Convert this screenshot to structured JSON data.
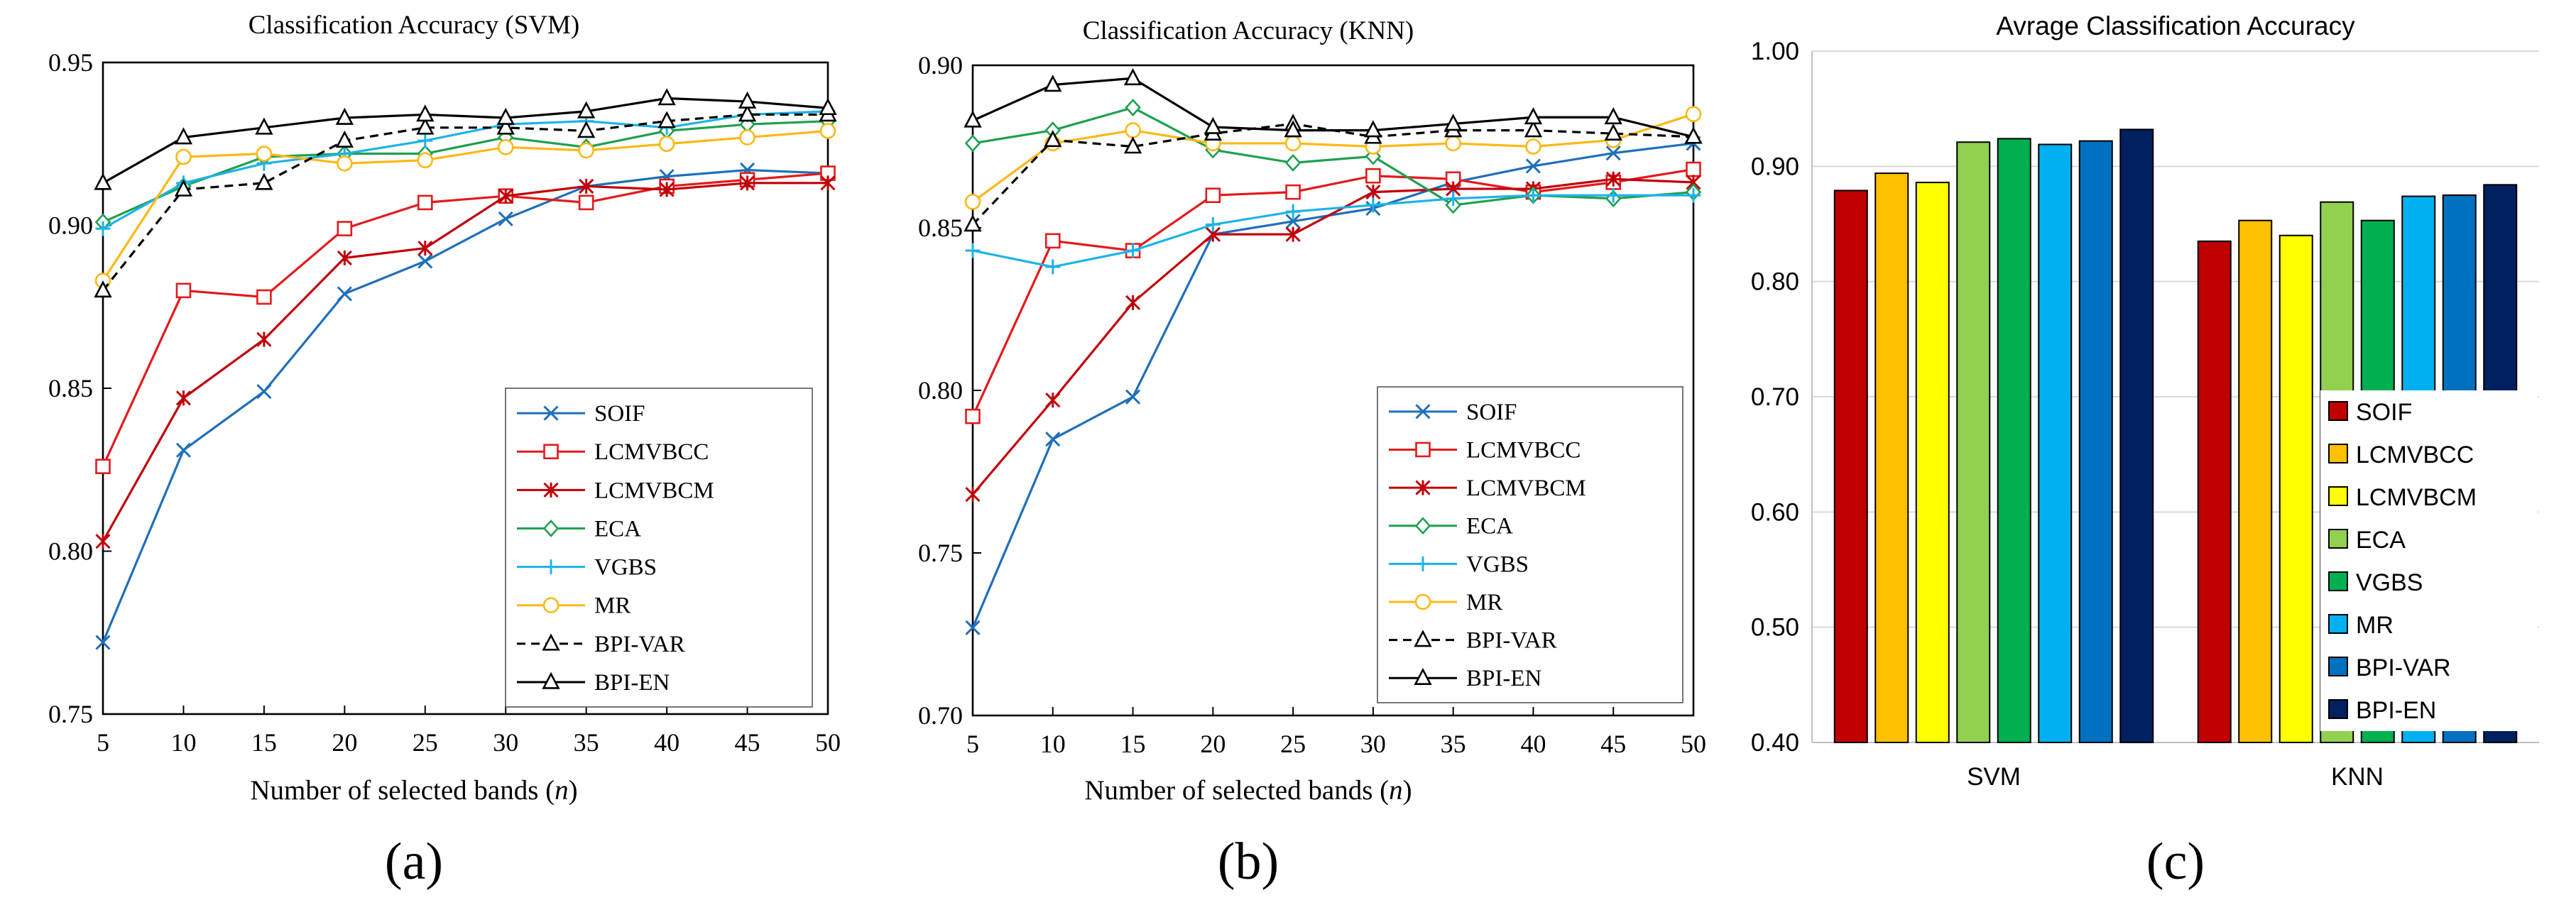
{
  "colors": {
    "SOIF_line": "#1F6FB9",
    "LCMVBCC_line": "#E31A1C",
    "LCMVBCM_line": "#C0000A",
    "ECA_line": "#1FA050",
    "VGBS_line": "#1DB3E8",
    "MR_line": "#FDB813",
    "BPI_line": "#000000",
    "bar_SOIF": "#C00000",
    "bar_LCMVBCC": "#FFC000",
    "bar_LCMVBCM": "#FFFF00",
    "bar_ECA": "#92D050",
    "bar_VGBS": "#00B050",
    "bar_MR": "#00B0F0",
    "bar_BPI_VAR": "#0070C0",
    "bar_BPI_EN": "#002060"
  },
  "chart_data": [
    {
      "type": "line",
      "panel_label": "(a)",
      "title": "Classification Accuracy (SVM)",
      "xlabel_prefix": "Number of selected bands (",
      "xlabel_var": "n",
      "xlabel_suffix": ")",
      "ylabel": "",
      "x": [
        5,
        10,
        15,
        20,
        25,
        30,
        35,
        40,
        45,
        50
      ],
      "xlim": [
        5,
        50
      ],
      "ylim": [
        0.75,
        0.95
      ],
      "yticks": [
        "0.75",
        "0.80",
        "0.85",
        "0.90",
        "0.95"
      ],
      "legend_position": "bottom-right",
      "series": [
        {
          "name": "SOIF",
          "marker": "x",
          "dash": "solid",
          "values": [
            0.772,
            0.831,
            0.849,
            0.879,
            0.889,
            0.902,
            0.912,
            0.915,
            0.917,
            0.916
          ]
        },
        {
          "name": "LCMVBCC",
          "marker": "square",
          "dash": "solid",
          "values": [
            0.826,
            0.88,
            0.878,
            0.899,
            0.907,
            0.909,
            0.907,
            0.912,
            0.914,
            0.916
          ]
        },
        {
          "name": "LCMVBCM",
          "marker": "asterisk",
          "dash": "solid",
          "values": [
            0.803,
            0.847,
            0.865,
            0.89,
            0.893,
            0.909,
            0.912,
            0.911,
            0.913,
            0.913
          ]
        },
        {
          "name": "ECA",
          "marker": "diamond",
          "dash": "solid",
          "values": [
            0.901,
            0.912,
            0.921,
            0.922,
            0.922,
            0.927,
            0.924,
            0.929,
            0.931,
            0.932
          ]
        },
        {
          "name": "VGBS",
          "marker": "plus",
          "dash": "solid",
          "values": [
            0.899,
            0.913,
            0.919,
            0.922,
            0.926,
            0.931,
            0.932,
            0.93,
            0.934,
            0.935
          ]
        },
        {
          "name": "MR",
          "marker": "circle",
          "dash": "solid",
          "values": [
            0.883,
            0.921,
            0.922,
            0.919,
            0.92,
            0.924,
            0.923,
            0.925,
            0.927,
            0.929
          ]
        },
        {
          "name": "BPI-VAR",
          "marker": "triangle",
          "dash": "dashed",
          "values": [
            0.88,
            0.911,
            0.913,
            0.926,
            0.93,
            0.93,
            0.929,
            0.932,
            0.934,
            0.934
          ]
        },
        {
          "name": "BPI-EN",
          "marker": "triangle",
          "dash": "solid",
          "values": [
            0.913,
            0.927,
            0.93,
            0.933,
            0.934,
            0.933,
            0.935,
            0.939,
            0.938,
            0.936
          ]
        }
      ]
    },
    {
      "type": "line",
      "panel_label": "(b)",
      "title": "Classification Accuracy (KNN)",
      "xlabel_prefix": "Number of selected bands (",
      "xlabel_var": "n",
      "xlabel_suffix": ")",
      "ylabel": "",
      "x": [
        5,
        10,
        15,
        20,
        25,
        30,
        35,
        40,
        45,
        50
      ],
      "xlim": [
        5,
        50
      ],
      "ylim": [
        0.7,
        0.9
      ],
      "yticks": [
        "0.70",
        "0.75",
        "0.80",
        "0.85",
        "0.90"
      ],
      "legend_position": "bottom-right",
      "series": [
        {
          "name": "SOIF",
          "marker": "x",
          "dash": "solid",
          "values": [
            0.727,
            0.785,
            0.798,
            0.848,
            0.852,
            0.856,
            0.864,
            0.869,
            0.873,
            0.876
          ]
        },
        {
          "name": "LCMVBCC",
          "marker": "square",
          "dash": "solid",
          "values": [
            0.792,
            0.846,
            0.843,
            0.86,
            0.861,
            0.866,
            0.865,
            0.861,
            0.864,
            0.868
          ]
        },
        {
          "name": "LCMVBCM",
          "marker": "asterisk",
          "dash": "solid",
          "values": [
            0.768,
            0.797,
            0.827,
            0.848,
            0.848,
            0.861,
            0.862,
            0.862,
            0.865,
            0.864
          ]
        },
        {
          "name": "ECA",
          "marker": "diamond",
          "dash": "solid",
          "values": [
            0.876,
            0.88,
            0.887,
            0.874,
            0.87,
            0.872,
            0.857,
            0.86,
            0.859,
            0.861
          ]
        },
        {
          "name": "VGBS",
          "marker": "plus",
          "dash": "solid",
          "values": [
            0.843,
            0.838,
            0.843,
            0.851,
            0.855,
            0.857,
            0.859,
            0.86,
            0.86,
            0.86
          ]
        },
        {
          "name": "MR",
          "marker": "circle",
          "dash": "solid",
          "values": [
            0.858,
            0.876,
            0.88,
            0.876,
            0.876,
            0.875,
            0.876,
            0.875,
            0.877,
            0.885
          ]
        },
        {
          "name": "BPI-VAR",
          "marker": "triangle",
          "dash": "dashed",
          "values": [
            0.851,
            0.877,
            0.875,
            0.879,
            0.882,
            0.878,
            0.88,
            0.88,
            0.879,
            0.878
          ]
        },
        {
          "name": "BPI-EN",
          "marker": "triangle",
          "dash": "solid",
          "values": [
            0.883,
            0.894,
            0.896,
            0.881,
            0.88,
            0.88,
            0.882,
            0.884,
            0.884,
            0.878
          ]
        }
      ]
    },
    {
      "type": "bar",
      "panel_label": "(c)",
      "title": "Avrage Classification Accuracy",
      "xlabel": "",
      "ylabel": "",
      "categories": [
        "SVM",
        "KNN"
      ],
      "ylim": [
        0.4,
        1.0
      ],
      "yticks": [
        "0.40",
        "0.50",
        "0.60",
        "0.70",
        "0.80",
        "0.90",
        "1.00"
      ],
      "legend_position": "bottom-right",
      "series": [
        {
          "name": "SOIF",
          "values": [
            0.879,
            0.835
          ]
        },
        {
          "name": "LCMVBCC",
          "values": [
            0.894,
            0.853
          ]
        },
        {
          "name": "LCMVBCM",
          "values": [
            0.886,
            0.84
          ]
        },
        {
          "name": "ECA",
          "values": [
            0.921,
            0.869
          ]
        },
        {
          "name": "VGBS",
          "values": [
            0.924,
            0.853
          ]
        },
        {
          "name": "MR",
          "values": [
            0.919,
            0.874
          ]
        },
        {
          "name": "BPI-VAR",
          "values": [
            0.922,
            0.875
          ]
        },
        {
          "name": "BPI-EN",
          "values": [
            0.932,
            0.884
          ]
        }
      ]
    }
  ]
}
